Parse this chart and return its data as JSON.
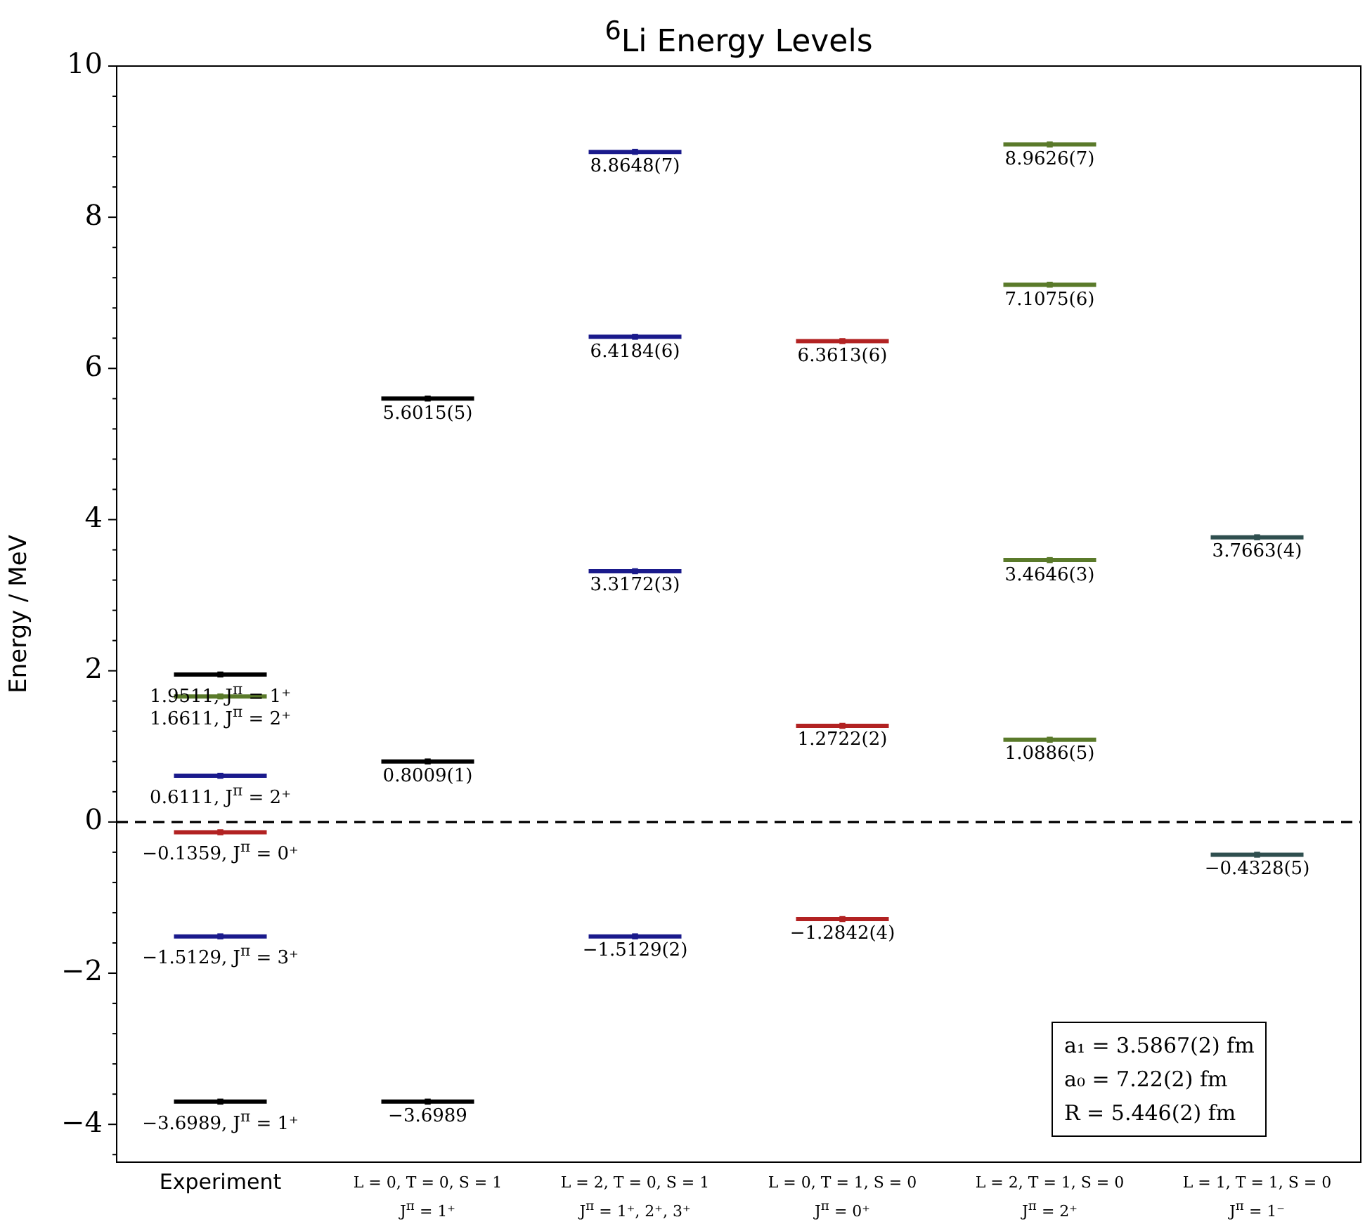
{
  "chart_data": {
    "type": "scatter",
    "title": "$^{6}$Li Energy Levels",
    "ylabel": "Energy / MeV",
    "categories": [
      "Experiment",
      "L = 0, T = 0, S = 1\nJ$^{π}$ = 1⁺",
      "L = 2, T = 0, S = 1\nJ$^{π}$ = 1⁺, 2⁺, 3⁺",
      "L = 0, T = 1, S = 0\nJ$^{π}$ = 0⁺",
      "L = 2, T = 1, S = 0\nJ$^{π}$ = 2⁺",
      "L = 1, T = 1, S = 0\nJ$^{π}$ = 1⁻"
    ],
    "series": [
      {
        "x": [
          "Experiment",
          "Experiment",
          "Experiment",
          "Experiment",
          "Experiment",
          "Experiment"
        ],
        "values": [
          1.9511,
          1.6611,
          0.6111,
          -0.1359,
          -1.5129,
          -3.6989
        ],
        "colors": [
          "#000000",
          "#5a7a2a",
          "#1a1a8c",
          "#b22222",
          "#1a1a8c",
          "#000000"
        ],
        "value_labels": [
          "1.9511, J$^{π}$ = 1⁺",
          "1.6611, J$^{π}$ = 2⁺",
          "0.6111, J$^{π}$ = 2⁺",
          "−0.1359, J$^{π}$ = 0⁺",
          "−1.5129, J$^{π}$ = 3⁺",
          "−3.6989, J$^{π}$ = 1⁺"
        ]
      },
      {
        "x": [
          "L = 0, T = 0, S = 1\nJ$^{π}$ = 1⁺",
          "L = 0, T = 0, S = 1\nJ$^{π}$ = 1⁺",
          "L = 0, T = 0, S = 1\nJ$^{π}$ = 1⁺"
        ],
        "values": [
          5.6015,
          0.8009,
          -3.6989
        ],
        "color": "#000000",
        "value_labels": [
          "5.6015(5)",
          "0.8009(1)",
          "−3.6989"
        ]
      },
      {
        "x": [
          "L = 2, T = 0, S = 1\nJ$^{π}$ = 1⁺, 2⁺, 3⁺",
          "L = 2, T = 0, S = 1\nJ$^{π}$ = 1⁺, 2⁺, 3⁺",
          "L = 2, T = 0, S = 1\nJ$^{π}$ = 1⁺, 2⁺, 3⁺",
          "L = 2, T = 0, S = 1\nJ$^{π}$ = 1⁺, 2⁺, 3⁺"
        ],
        "values": [
          8.8648,
          6.4184,
          3.3172,
          -1.5129
        ],
        "color": "#1a1a8c",
        "value_labels": [
          "8.8648(7)",
          "6.4184(6)",
          "3.3172(3)",
          "−1.5129(2)"
        ]
      },
      {
        "x": [
          "L = 0, T = 1, S = 0\nJ$^{π}$ = 0⁺",
          "L = 0, T = 1, S = 0\nJ$^{π}$ = 0⁺",
          "L = 0, T = 1, S = 0\nJ$^{π}$ = 0⁺"
        ],
        "values": [
          6.3613,
          1.2722,
          -1.2842
        ],
        "color": "#b22222",
        "value_labels": [
          "6.3613(6)",
          "1.2722(2)",
          "−1.2842(4)"
        ]
      },
      {
        "x": [
          "L = 2, T = 1, S = 0\nJ$^{π}$ = 2⁺",
          "L = 2, T = 1, S = 0\nJ$^{π}$ = 2⁺",
          "L = 2, T = 1, S = 0\nJ$^{π}$ = 2⁺",
          "L = 2, T = 1, S = 0\nJ$^{π}$ = 2⁺"
        ],
        "values": [
          8.9626,
          7.1075,
          3.4646,
          1.0886
        ],
        "color": "#5a7a2a",
        "value_labels": [
          "8.9626(7)",
          "7.1075(6)",
          "3.4646(3)",
          "1.0886(5)"
        ]
      },
      {
        "x": [
          "L = 1, T = 1, S = 0\nJ$^{π}$ = 1⁻",
          "L = 1, T = 1, S = 0\nJ$^{π}$ = 1⁻"
        ],
        "values": [
          3.7663,
          -0.4328
        ],
        "color": "#2f4f4f",
        "value_labels": [
          "3.7663(4)",
          "−0.4328(5)"
        ]
      }
    ],
    "ylim": [
      -4.5,
      10
    ],
    "yticks": [
      {
        "value": -4.4,
        "label": null
      },
      -4,
      {
        "value": -3.6,
        "label": null
      },
      {
        "value": -3.2,
        "label": null
      },
      {
        "value": -2.8,
        "label": null
      },
      {
        "value": -2.4,
        "label": null
      },
      -2,
      {
        "value": -1.6,
        "label": null
      },
      {
        "value": -1.2,
        "label": null
      },
      {
        "value": -0.8,
        "label": null
      },
      {
        "value": -0.4,
        "label": null
      },
      0,
      {
        "value": 0.4,
        "label": null
      },
      {
        "value": 0.8,
        "label": null
      },
      {
        "value": 1.2,
        "label": null
      },
      {
        "value": 1.6,
        "label": null
      },
      2,
      {
        "value": 2.4,
        "label": null
      },
      {
        "value": 2.8,
        "label": null
      },
      {
        "value": 3.2,
        "label": null
      },
      {
        "value": 3.6,
        "label": null
      },
      4,
      {
        "value": 4.4,
        "label": null
      },
      {
        "value": 4.8,
        "label": null
      },
      {
        "value": 5.2,
        "label": null
      },
      {
        "value": 5.6,
        "label": null
      },
      6,
      {
        "value": 6.4,
        "label": null
      },
      {
        "value": 6.8,
        "label": null
      },
      {
        "value": 7.2,
        "label": null
      },
      {
        "value": 7.6,
        "label": null
      },
      8,
      {
        "value": 8.4,
        "label": null
      },
      {
        "value": 8.8,
        "label": null
      },
      {
        "value": 9.2,
        "label": null
      },
      {
        "value": 9.6,
        "label": null
      },
      10
    ],
    "ref_lines": [
      {
        "axis": "y",
        "value": 0,
        "color": "#000000",
        "line_style": "dashed"
      }
    ],
    "annotations": [
      "a₁ = 3.5867(2) fm",
      "a₀ = 7.22(2) fm",
      "R = 5.446(2) fm"
    ],
    "grid": false,
    "legend": false
  }
}
